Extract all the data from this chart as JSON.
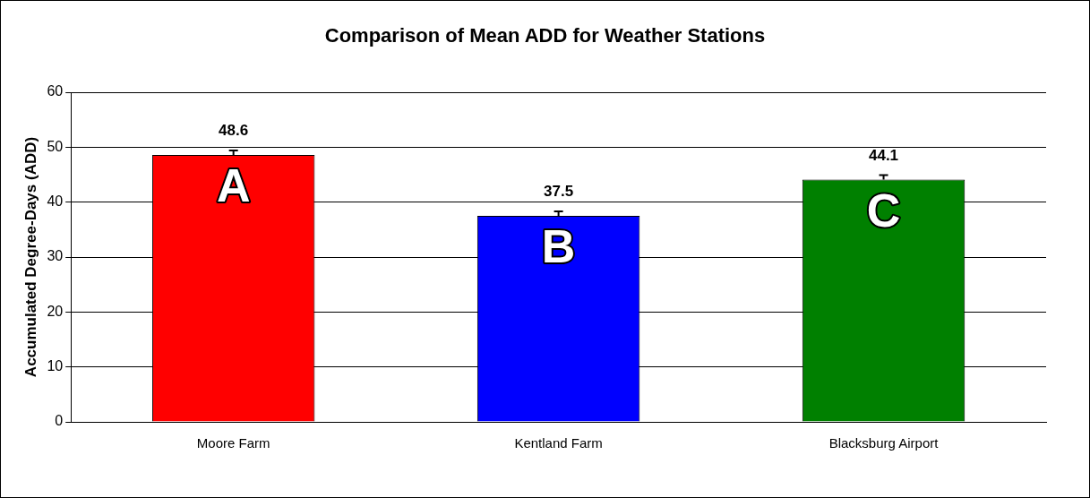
{
  "chart_data": {
    "type": "bar",
    "title": "Comparison of Mean ADD for Weather Stations",
    "ylabel": "Accumulated Degree-Days (ADD)",
    "categories": [
      "Moore Farm",
      "Kentland Farm",
      "Blacksburg Airport"
    ],
    "values": [
      48.6,
      37.5,
      44.1
    ],
    "colors": [
      "#ff0000",
      "#0000ff",
      "#008000"
    ],
    "errors": [
      [
        48.6,
        49.4
      ],
      [
        37.5,
        38.3
      ],
      [
        44.1,
        44.9
      ]
    ],
    "ylim": [
      0,
      60
    ],
    "yticks": [
      0,
      10,
      20,
      30,
      40,
      50,
      60
    ],
    "grid": "y",
    "data_labels": true,
    "legend": false,
    "annotations": [
      "A",
      "B",
      "C"
    ]
  }
}
